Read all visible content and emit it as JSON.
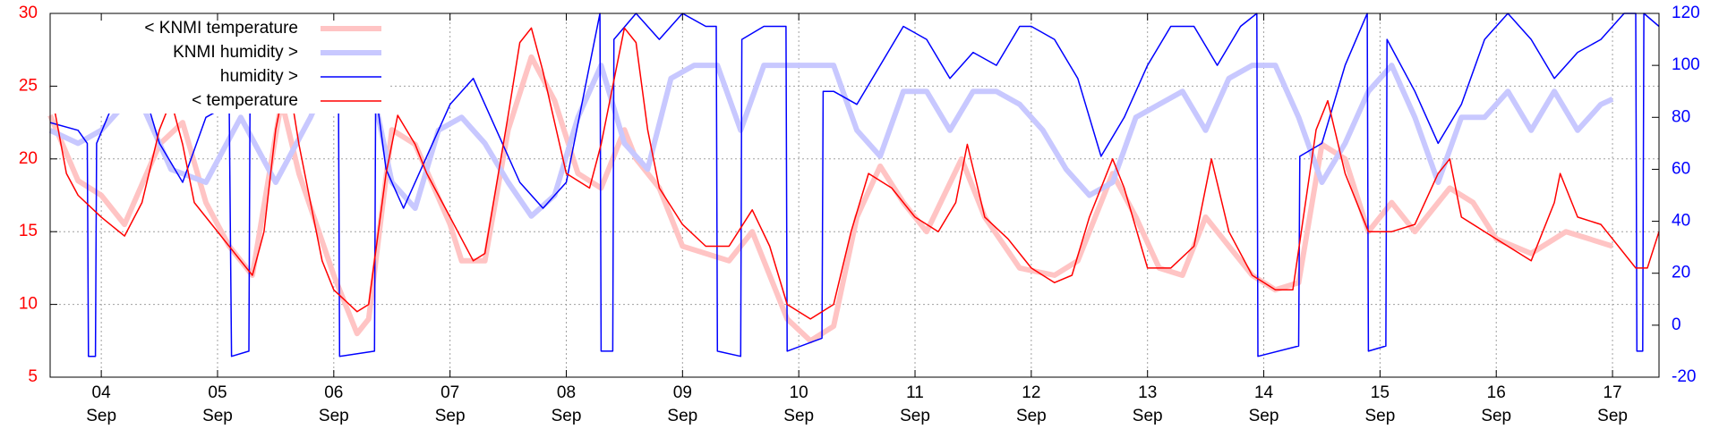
{
  "chart_data": {
    "type": "line",
    "grid": true,
    "legend": "top-left",
    "xlim": [
      3.56,
      17.4
    ],
    "ylim": [
      5,
      30
    ],
    "y2lim": [
      -20,
      120
    ],
    "ycolor": "#ff0000",
    "y2color": "#0000ff",
    "yticks": [
      5,
      10,
      15,
      20,
      25,
      30
    ],
    "y2ticks": [
      -20,
      0,
      20,
      40,
      60,
      80,
      100,
      120
    ],
    "xticks": [
      {
        "value": 4,
        "label": [
          "04",
          "Sep"
        ]
      },
      {
        "value": 5,
        "label": [
          "05",
          "Sep"
        ]
      },
      {
        "value": 6,
        "label": [
          "06",
          "Sep"
        ]
      },
      {
        "value": 7,
        "label": [
          "07",
          "Sep"
        ]
      },
      {
        "value": 8,
        "label": [
          "08",
          "Sep"
        ]
      },
      {
        "value": 9,
        "label": [
          "09",
          "Sep"
        ]
      },
      {
        "value": 10,
        "label": [
          "10",
          "Sep"
        ]
      },
      {
        "value": 11,
        "label": [
          "11",
          "Sep"
        ]
      },
      {
        "value": 12,
        "label": [
          "12",
          "Sep"
        ]
      },
      {
        "value": 13,
        "label": [
          "13",
          "Sep"
        ]
      },
      {
        "value": 14,
        "label": [
          "14",
          "Sep"
        ]
      },
      {
        "value": 15,
        "label": [
          "15",
          "Sep"
        ]
      },
      {
        "value": 16,
        "label": [
          "16",
          "Sep"
        ]
      },
      {
        "value": 17,
        "label": [
          "17",
          "Sep"
        ]
      }
    ],
    "series": [
      {
        "name": "< KNMI temperature",
        "color": "#ffc4c4",
        "width": 6,
        "axis": "y",
        "x": [
          3.56,
          3.8,
          4.0,
          4.2,
          4.5,
          4.7,
          4.9,
          5.1,
          5.3,
          5.55,
          5.7,
          6.0,
          6.2,
          6.3,
          6.5,
          6.7,
          7.0,
          7.1,
          7.3,
          7.5,
          7.7,
          7.9,
          8.1,
          8.3,
          8.5,
          8.6,
          8.8,
          9.0,
          9.2,
          9.4,
          9.6,
          9.9,
          10.1,
          10.3,
          10.5,
          10.7,
          10.9,
          11.1,
          11.4,
          11.6,
          11.9,
          12.2,
          12.4,
          12.7,
          12.9,
          13.1,
          13.3,
          13.5,
          13.7,
          13.9,
          14.1,
          14.3,
          14.5,
          14.7,
          14.9,
          15.1,
          15.3,
          15.6,
          15.8,
          16.0,
          16.3,
          16.6,
          16.8,
          17.0
        ],
        "values": [
          23,
          18.5,
          17.5,
          15.5,
          21,
          22.5,
          17,
          14,
          12,
          24,
          19,
          12,
          8,
          9,
          22,
          21,
          15.5,
          13,
          13,
          22,
          27,
          24,
          19,
          18,
          22,
          20,
          18,
          14,
          13.5,
          13,
          15,
          9,
          7.5,
          8.5,
          16,
          19.5,
          17,
          15,
          20,
          16,
          12.5,
          12,
          13,
          19,
          16,
          12.5,
          12,
          16,
          14,
          12,
          11,
          11.5,
          21,
          20,
          15,
          17,
          15,
          18,
          17,
          14.5,
          13.5,
          15,
          14.5,
          14
        ]
      },
      {
        "name": "KNMI humidity >",
        "color": "#c8c8ff",
        "width": 6,
        "axis": "y2",
        "x": [
          3.56,
          3.8,
          4.0,
          4.3,
          4.6,
          4.9,
          5.2,
          5.5,
          5.8,
          6.0,
          6.3,
          6.5,
          6.7,
          6.9,
          7.1,
          7.3,
          7.5,
          7.7,
          7.9,
          8.1,
          8.3,
          8.5,
          8.7,
          8.9,
          9.1,
          9.3,
          9.5,
          9.7,
          10.0,
          10.3,
          10.5,
          10.7,
          10.9,
          11.1,
          11.3,
          11.5,
          11.7,
          11.9,
          12.1,
          12.3,
          12.5,
          12.7,
          12.9,
          13.1,
          13.3,
          13.5,
          13.7,
          13.9,
          14.1,
          14.3,
          14.5,
          14.7,
          14.9,
          15.1,
          15.3,
          15.5,
          15.7,
          15.9,
          16.1,
          16.3,
          16.5,
          16.7,
          16.9,
          17.0
        ],
        "values": [
          75,
          70,
          75,
          90,
          60,
          55,
          80,
          55,
          80,
          100,
          98,
          55,
          45,
          75,
          80,
          70,
          55,
          42,
          50,
          80,
          100,
          70,
          60,
          95,
          100,
          100,
          75,
          100,
          100,
          100,
          75,
          65,
          90,
          90,
          75,
          90,
          90,
          85,
          75,
          60,
          50,
          55,
          80,
          85,
          90,
          75,
          95,
          100,
          100,
          80,
          55,
          70,
          90,
          100,
          80,
          55,
          80,
          80,
          90,
          75,
          90,
          75,
          85,
          87
        ]
      },
      {
        "name": "humidity >",
        "color": "#0000ff",
        "width": 1.5,
        "axis": "y2",
        "x": [
          3.56,
          3.8,
          3.88,
          3.89,
          3.95,
          3.96,
          4.1,
          4.3,
          4.5,
          4.7,
          4.9,
          5.1,
          5.12,
          5.27,
          5.28,
          5.4,
          5.55,
          5.7,
          5.9,
          6.04,
          6.05,
          6.35,
          6.36,
          6.45,
          6.6,
          6.8,
          7.0,
          7.2,
          7.4,
          7.6,
          7.8,
          8.0,
          8.2,
          8.29,
          8.3,
          8.4,
          8.41,
          8.6,
          8.8,
          9.0,
          9.2,
          9.29,
          9.3,
          9.5,
          9.51,
          9.7,
          9.89,
          9.9,
          10.2,
          10.21,
          10.3,
          10.5,
          10.7,
          10.9,
          11.1,
          11.3,
          11.5,
          11.7,
          11.9,
          12.0,
          12.2,
          12.4,
          12.6,
          12.8,
          13.0,
          13.2,
          13.4,
          13.6,
          13.8,
          13.94,
          13.95,
          14.3,
          14.31,
          14.5,
          14.7,
          14.89,
          14.9,
          15.05,
          15.06,
          15.3,
          15.5,
          15.7,
          15.9,
          16.1,
          16.3,
          16.5,
          16.7,
          16.9,
          17.1,
          17.2,
          17.21,
          17.26,
          17.27,
          17.4
        ],
        "values": [
          78,
          75,
          70,
          -12,
          -12,
          70,
          85,
          100,
          70,
          55,
          80,
          85,
          -12,
          -10,
          90,
          95,
          100,
          85,
          90,
          95,
          -12,
          -10,
          90,
          60,
          45,
          65,
          85,
          95,
          75,
          55,
          45,
          55,
          100,
          120,
          -10,
          -10,
          110,
          120,
          110,
          120,
          115,
          115,
          -10,
          -12,
          110,
          115,
          115,
          -10,
          -5,
          90,
          90,
          85,
          100,
          115,
          110,
          95,
          105,
          100,
          115,
          115,
          110,
          95,
          65,
          80,
          100,
          115,
          115,
          100,
          115,
          120,
          -12,
          -8,
          65,
          70,
          100,
          120,
          -10,
          -8,
          110,
          90,
          70,
          85,
          110,
          120,
          110,
          95,
          105,
          110,
          120,
          120,
          -10,
          -10,
          120,
          115
        ]
      },
      {
        "name": "< temperature",
        "color": "#ff0000",
        "width": 1.5,
        "axis": "y",
        "x": [
          3.56,
          3.7,
          3.8,
          4.0,
          4.2,
          4.35,
          4.5,
          4.6,
          4.7,
          4.8,
          5.0,
          5.2,
          5.3,
          5.4,
          5.5,
          5.6,
          5.7,
          5.8,
          5.9,
          6.0,
          6.2,
          6.3,
          6.45,
          6.55,
          6.7,
          6.8,
          7.0,
          7.2,
          7.3,
          7.5,
          7.6,
          7.7,
          7.8,
          8.0,
          8.2,
          8.3,
          8.5,
          8.6,
          8.7,
          8.8,
          9.0,
          9.2,
          9.4,
          9.6,
          9.75,
          9.9,
          10.1,
          10.3,
          10.45,
          10.6,
          10.8,
          11.0,
          11.2,
          11.35,
          11.45,
          11.6,
          11.8,
          12.0,
          12.2,
          12.35,
          12.5,
          12.7,
          12.8,
          13.0,
          13.2,
          13.4,
          13.55,
          13.7,
          13.9,
          14.1,
          14.25,
          14.45,
          14.55,
          14.7,
          14.9,
          15.1,
          15.3,
          15.5,
          15.6,
          15.7,
          15.9,
          16.1,
          16.3,
          16.5,
          16.55,
          16.7,
          16.9,
          17.0,
          17.2,
          17.3,
          17.4
        ],
        "values": [
          25,
          19,
          17.5,
          16,
          14.7,
          17,
          22,
          24,
          21,
          17,
          15,
          13,
          12,
          15,
          22,
          26,
          21,
          17,
          13,
          11,
          9.5,
          10,
          19,
          23,
          21,
          19,
          16,
          13,
          13.5,
          23,
          28,
          29,
          26,
          19,
          18,
          21,
          29,
          28,
          22,
          18,
          15.5,
          14,
          14,
          16.5,
          14,
          10,
          9,
          10,
          15,
          19,
          18,
          16,
          15,
          17,
          21,
          16,
          14.5,
          12.5,
          11.5,
          12,
          16,
          20,
          18,
          12.5,
          12.5,
          14,
          20,
          15,
          12,
          11,
          11,
          22,
          24,
          19,
          15,
          15,
          15.5,
          19,
          20,
          16,
          15,
          14,
          13,
          17,
          19,
          16,
          15.5,
          14.5,
          12.5,
          12.5,
          15
        ]
      }
    ]
  }
}
